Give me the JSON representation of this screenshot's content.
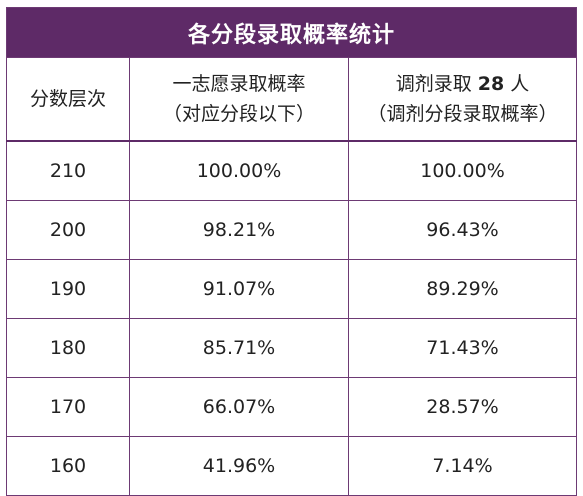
{
  "table": {
    "title": "各分段录取概率统计",
    "headers": {
      "col1": "分数层次",
      "col2_line1": "一志愿录取概率",
      "col2_line2": "（对应分段以下）",
      "col3_line1_prefix": "调剂录取",
      "col3_count": "28",
      "col3_line1_suffix": "人",
      "col3_line2": "（调剂分段录取概率）"
    },
    "rows": [
      {
        "score": "210",
        "first_choice": "100.00%",
        "adjusted": "100.00%"
      },
      {
        "score": "200",
        "first_choice": "98.21%",
        "adjusted": "96.43%"
      },
      {
        "score": "190",
        "first_choice": "91.07%",
        "adjusted": "89.29%"
      },
      {
        "score": "180",
        "first_choice": "85.71%",
        "adjusted": "71.43%"
      },
      {
        "score": "170",
        "first_choice": "66.07%",
        "adjusted": "28.57%"
      },
      {
        "score": "160",
        "first_choice": "41.96%",
        "adjusted": "7.14%"
      }
    ]
  }
}
